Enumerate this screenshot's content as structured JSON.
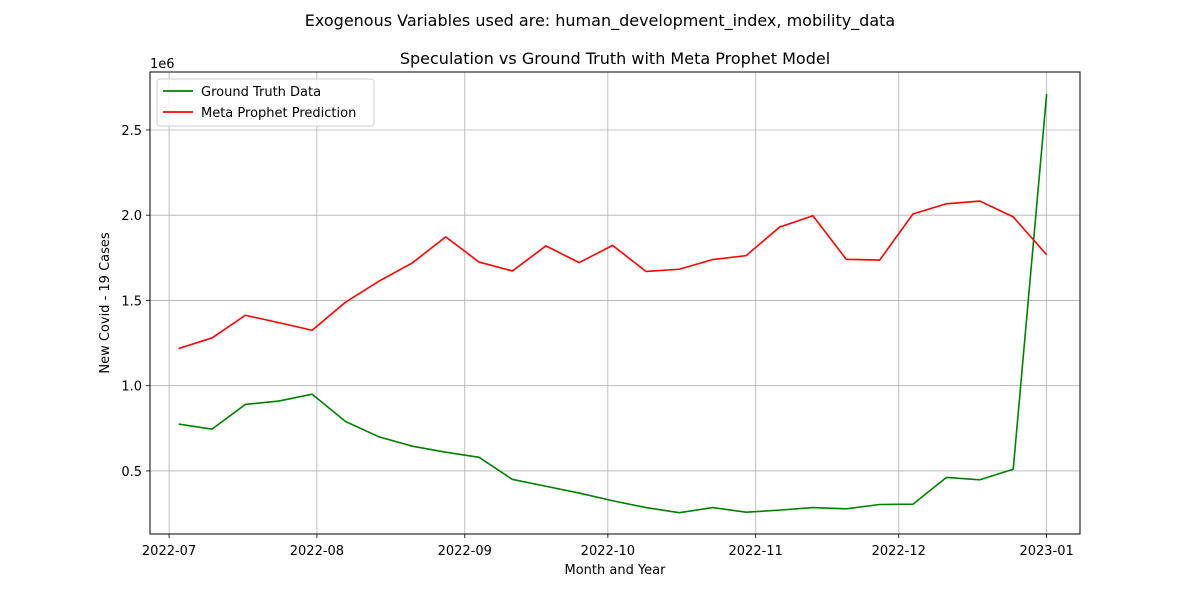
{
  "figure": {
    "suptitle": "Exogenous Variables used are: human_development_index, mobility_data"
  },
  "chart_data": {
    "type": "line",
    "title": "Speculation vs Ground Truth with Meta Prophet Model",
    "xlabel": "Month and Year",
    "ylabel": "New Covid - 19 Cases",
    "y_offset_label": "1e6",
    "x_scale": "date",
    "xlim": [
      "2022-06-27",
      "2023-01-08"
    ],
    "ylim": [
      0.13,
      2.84
    ],
    "y_unit_multiplier": 1000000,
    "grid": true,
    "legend_position": "upper left",
    "x_ticks": [
      "2022-07-01",
      "2022-08-01",
      "2022-09-01",
      "2022-10-01",
      "2022-11-01",
      "2022-12-01",
      "2023-01-01"
    ],
    "x_tick_labels": [
      "2022-07",
      "2022-08",
      "2022-09",
      "2022-10",
      "2022-11",
      "2022-12",
      "2023-01"
    ],
    "y_ticks": [
      0.5,
      1.0,
      1.5,
      2.0,
      2.5
    ],
    "y_tick_labels": [
      "0.5",
      "1.0",
      "1.5",
      "2.0",
      "2.5"
    ],
    "x": [
      "2022-07-03",
      "2022-07-10",
      "2022-07-17",
      "2022-07-24",
      "2022-07-31",
      "2022-08-07",
      "2022-08-14",
      "2022-08-21",
      "2022-08-28",
      "2022-09-04",
      "2022-09-11",
      "2022-09-18",
      "2022-09-25",
      "2022-10-02",
      "2022-10-09",
      "2022-10-16",
      "2022-10-23",
      "2022-10-30",
      "2022-11-06",
      "2022-11-13",
      "2022-11-20",
      "2022-11-27",
      "2022-12-04",
      "2022-12-11",
      "2022-12-18",
      "2022-12-25",
      "2023-01-01"
    ],
    "series": [
      {
        "name": "Ground Truth Data",
        "color": "#008000",
        "values": [
          0.775,
          0.745,
          0.89,
          0.91,
          0.95,
          0.79,
          0.7,
          0.645,
          0.61,
          0.58,
          0.45,
          0.41,
          0.37,
          0.325,
          0.285,
          0.255,
          0.285,
          0.258,
          0.27,
          0.285,
          0.278,
          0.303,
          0.305,
          0.462,
          0.448,
          0.51,
          2.71
        ]
      },
      {
        "name": "Meta Prophet Prediction",
        "color": "#ff0000",
        "values": [
          1.218,
          1.28,
          1.413,
          1.37,
          1.325,
          1.49,
          1.613,
          1.72,
          1.873,
          1.725,
          1.673,
          1.82,
          1.722,
          1.823,
          1.67,
          1.683,
          1.74,
          1.763,
          1.93,
          1.997,
          1.741,
          1.737,
          2.008,
          2.067,
          2.083,
          1.99,
          1.768
        ]
      }
    ]
  }
}
